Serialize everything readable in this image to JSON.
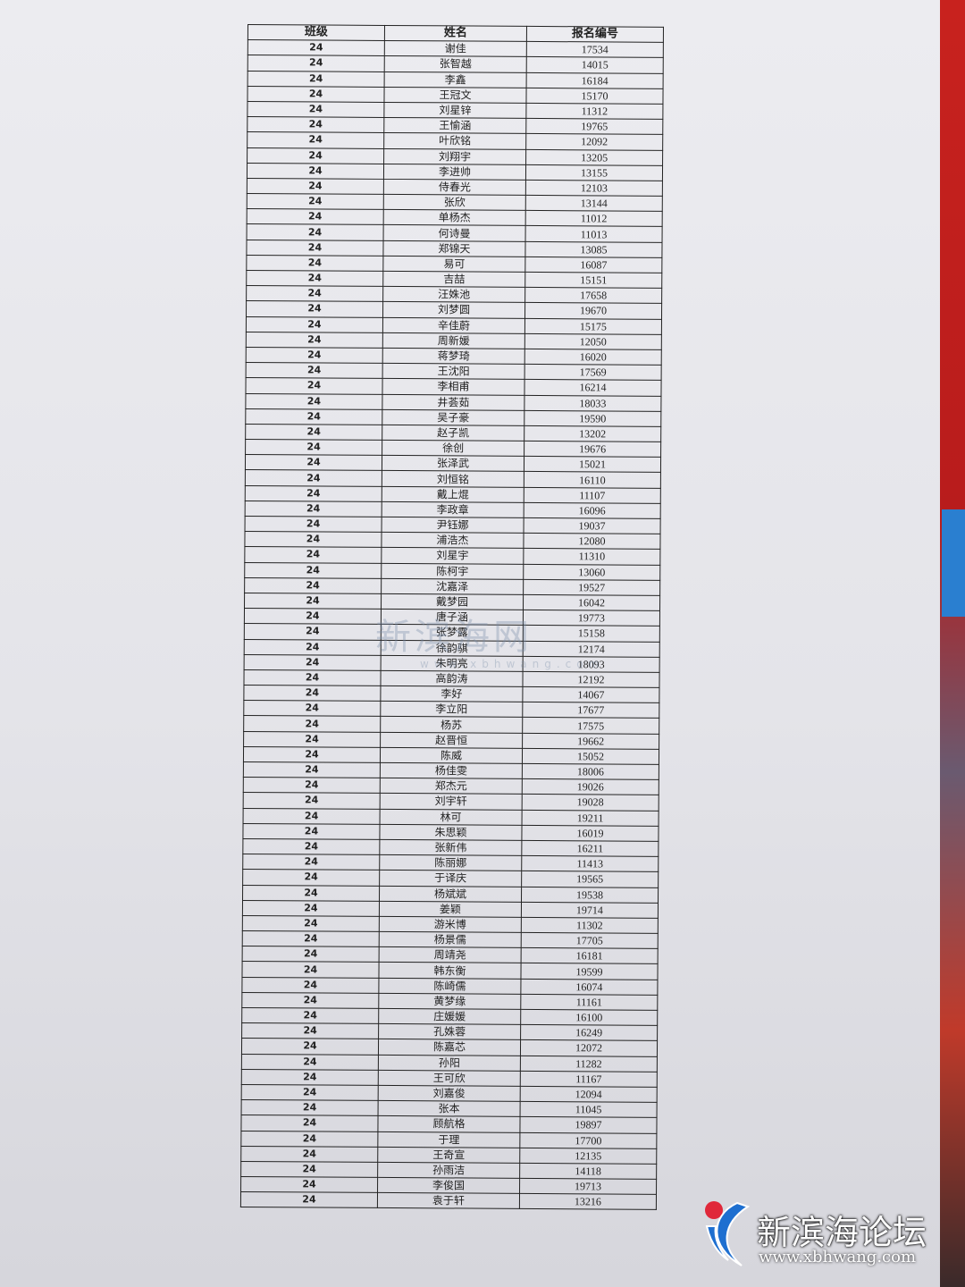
{
  "table": {
    "headers": [
      "班级",
      "姓名",
      "报名编号"
    ],
    "rows": [
      [
        "24",
        "谢佳",
        "17534"
      ],
      [
        "24",
        "张智越",
        "14015"
      ],
      [
        "24",
        "李鑫",
        "16184"
      ],
      [
        "24",
        "王冠文",
        "15170"
      ],
      [
        "24",
        "刘星锌",
        "11312"
      ],
      [
        "24",
        "王愉涵",
        "19765"
      ],
      [
        "24",
        "叶欣铭",
        "12092"
      ],
      [
        "24",
        "刘翔宇",
        "13205"
      ],
      [
        "24",
        "李进帅",
        "13155"
      ],
      [
        "24",
        "侍春光",
        "12103"
      ],
      [
        "24",
        "张欣",
        "13144"
      ],
      [
        "24",
        "单杨杰",
        "11012"
      ],
      [
        "24",
        "何诗曼",
        "11013"
      ],
      [
        "24",
        "郑锦天",
        "13085"
      ],
      [
        "24",
        "易可",
        "16087"
      ],
      [
        "24",
        "吉喆",
        "15151"
      ],
      [
        "24",
        "汪姝池",
        "17658"
      ],
      [
        "24",
        "刘梦圆",
        "19670"
      ],
      [
        "24",
        "辛佳蔚",
        "15175"
      ],
      [
        "24",
        "周新媛",
        "12050"
      ],
      [
        "24",
        "蒋梦琦",
        "16020"
      ],
      [
        "24",
        "王沈阳",
        "17569"
      ],
      [
        "24",
        "李相甫",
        "16214"
      ],
      [
        "24",
        "井荟茹",
        "18033"
      ],
      [
        "24",
        "吴子豪",
        "19590"
      ],
      [
        "24",
        "赵子凯",
        "13202"
      ],
      [
        "24",
        "徐创",
        "19676"
      ],
      [
        "24",
        "张泽武",
        "15021"
      ],
      [
        "24",
        "刘恒铭",
        "16110"
      ],
      [
        "24",
        "戴上焜",
        "11107"
      ],
      [
        "24",
        "李政章",
        "16096"
      ],
      [
        "24",
        "尹钰娜",
        "19037"
      ],
      [
        "24",
        "浦浩杰",
        "12080"
      ],
      [
        "24",
        "刘星宇",
        "11310"
      ],
      [
        "24",
        "陈柯宇",
        "13060"
      ],
      [
        "24",
        "沈嘉泽",
        "19527"
      ],
      [
        "24",
        "戴梦园",
        "16042"
      ],
      [
        "24",
        "唐子涵",
        "19773"
      ],
      [
        "24",
        "张梦露",
        "15158"
      ],
      [
        "24",
        "徐韵骐",
        "12174"
      ],
      [
        "24",
        "朱明亮",
        "18093"
      ],
      [
        "24",
        "高韵涛",
        "12192"
      ],
      [
        "24",
        "李好",
        "14067"
      ],
      [
        "24",
        "李立阳",
        "17677"
      ],
      [
        "24",
        "杨苏",
        "17575"
      ],
      [
        "24",
        "赵晋恒",
        "19662"
      ],
      [
        "24",
        "陈威",
        "15052"
      ],
      [
        "24",
        "杨佳雯",
        "18006"
      ],
      [
        "24",
        "郑杰元",
        "19026"
      ],
      [
        "24",
        "刘宇轩",
        "19028"
      ],
      [
        "24",
        "林可",
        "19211"
      ],
      [
        "24",
        "朱思颖",
        "16019"
      ],
      [
        "24",
        "张新伟",
        "16211"
      ],
      [
        "24",
        "陈丽娜",
        "11413"
      ],
      [
        "24",
        "于译庆",
        "19565"
      ],
      [
        "24",
        "杨斌斌",
        "19538"
      ],
      [
        "24",
        "姜颖",
        "19714"
      ],
      [
        "24",
        "游米博",
        "11302"
      ],
      [
        "24",
        "杨景儒",
        "17705"
      ],
      [
        "24",
        "周靖尧",
        "16181"
      ],
      [
        "24",
        "韩东衡",
        "19599"
      ],
      [
        "24",
        "陈崎儒",
        "16074"
      ],
      [
        "24",
        "黄梦缘",
        "11161"
      ],
      [
        "24",
        "庄媛媛",
        "16100"
      ],
      [
        "24",
        "孔姝蓉",
        "16249"
      ],
      [
        "24",
        "陈嘉芯",
        "12072"
      ],
      [
        "24",
        "孙阳",
        "11282"
      ],
      [
        "24",
        "王可欣",
        "11167"
      ],
      [
        "24",
        "刘嘉俊",
        "12094"
      ],
      [
        "24",
        "张本",
        "11045"
      ],
      [
        "24",
        "顾航格",
        "19897"
      ],
      [
        "24",
        "于理",
        "17700"
      ],
      [
        "24",
        "王奇宣",
        "12135"
      ],
      [
        "24",
        "孙雨洁",
        "14118"
      ],
      [
        "24",
        "李俊国",
        "19713"
      ],
      [
        "24",
        "袁于轩",
        "13216"
      ]
    ]
  },
  "watermark": {
    "text": "新滨海网",
    "url": "www.xbhwang.com"
  },
  "logo": {
    "text": "新滨海论坛",
    "url": "www.xbhwang.com"
  },
  "colors": {
    "logo_red": "#e0283a",
    "logo_blue": "#1e6fd0"
  }
}
